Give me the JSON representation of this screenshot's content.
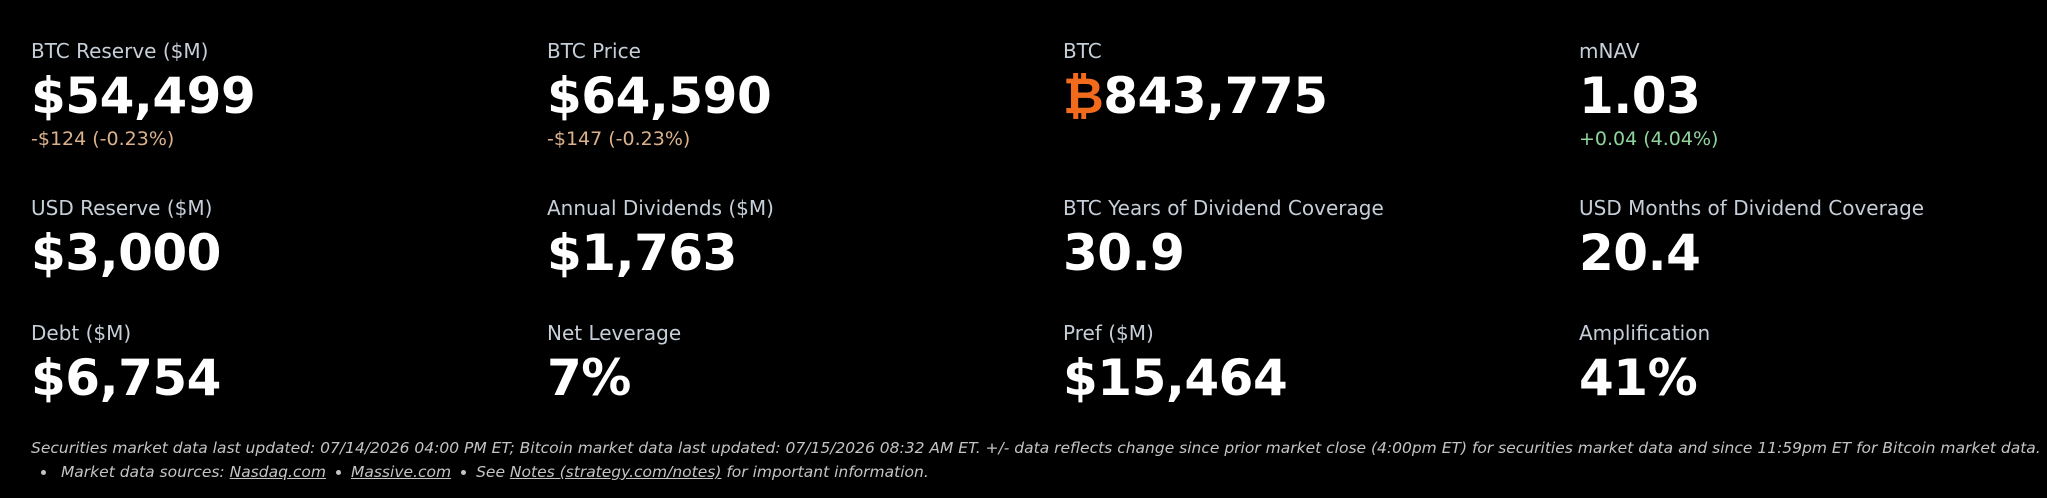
{
  "tiles": [
    {
      "label": "BTC Reserve ($M)",
      "value": "$54,499",
      "change": {
        "text": "-$124 (-0.23%)",
        "color": "#dcb28d"
      }
    },
    {
      "label": "BTC Price",
      "value": "$64,590",
      "change": {
        "text": "-$147 (-0.23%)",
        "color": "#dcb28d"
      }
    },
    {
      "label": "BTC",
      "symbol": "₿",
      "symbol_color": "#f26a1b",
      "value": "843,775"
    },
    {
      "label": "mNAV",
      "value": "1.03",
      "change": {
        "text": "+0.04 (4.04%)",
        "color": "#8fd49b"
      }
    },
    {
      "label": "USD Reserve ($M)",
      "value": "$3,000"
    },
    {
      "label": "Annual Dividends ($M)",
      "value": "$1,763"
    },
    {
      "label": "BTC Years of Dividend Coverage",
      "value": "30.9"
    },
    {
      "label": "USD Months of Dividend Coverage",
      "value": "20.4"
    },
    {
      "label": "Debt ($M)",
      "value": "$6,754"
    },
    {
      "label": "Net Leverage",
      "value": "7%"
    },
    {
      "label": "Pref ($M)",
      "value": "$15,464"
    },
    {
      "label": "Amplification",
      "value": "41%"
    }
  ],
  "footer": {
    "updated": "Securities market data last updated: 07/14/2026 04:00 PM ET; Bitcoin market data last updated: 07/15/2026 08:32 AM ET. +/- data reflects change since prior market close (4:00pm ET) for securities market data and since 11:59pm ET for Bitcoin market data.",
    "sources_label": "Market data sources:",
    "links": [
      "Nasdaq.com",
      "Massive.com"
    ],
    "see": "See",
    "notes_link": "Notes (strategy.com/notes)",
    "notes_tail": "for important information."
  }
}
